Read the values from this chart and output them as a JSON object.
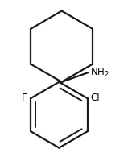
{
  "background_color": "#ffffff",
  "line_color": "#1a1a1a",
  "line_width": 1.6,
  "text_color": "#000000",
  "NH2_label": "NH$_2$",
  "F_label": "F",
  "Cl_label": "Cl",
  "NH2_fontsize": 8.5,
  "F_fontsize": 8.5,
  "Cl_fontsize": 8.5,
  "fig_width": 1.64,
  "fig_height": 1.95,
  "dpi": 100
}
